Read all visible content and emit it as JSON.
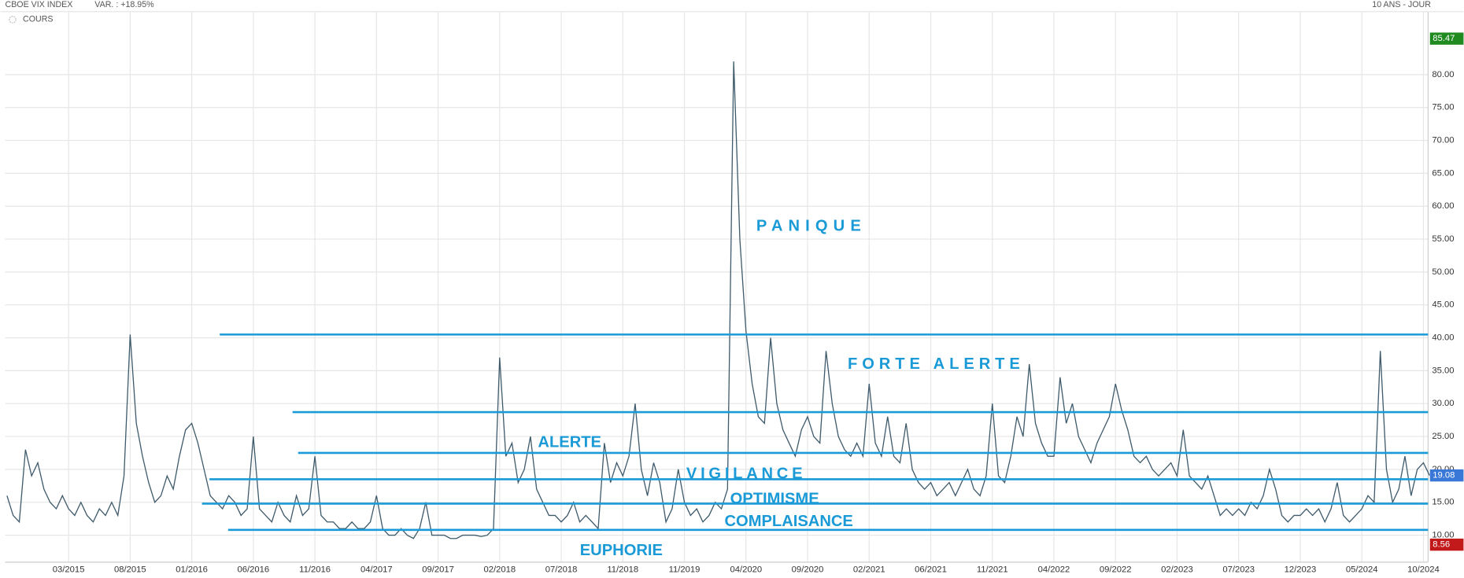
{
  "chart_data": {
    "type": "line",
    "header": {
      "title": "CBOE VIX INDEX",
      "variation": "VAR. : +18.95%",
      "period": "10 ANS - JOUR"
    },
    "legend_label": "COURS",
    "categories": [
      null,
      null,
      null,
      null,
      null,
      null,
      null,
      null,
      null,
      null,
      "03/2015",
      null,
      null,
      null,
      null,
      null,
      null,
      null,
      null,
      null,
      "08/2015",
      null,
      null,
      null,
      null,
      null,
      null,
      null,
      null,
      null,
      "01/2016",
      null,
      null,
      null,
      null,
      null,
      null,
      null,
      null,
      null,
      "06/2016",
      null,
      null,
      null,
      null,
      null,
      null,
      null,
      null,
      null,
      "11/2016",
      null,
      null,
      null,
      null,
      null,
      null,
      null,
      null,
      null,
      "04/2017",
      null,
      null,
      null,
      null,
      null,
      null,
      null,
      null,
      null,
      "09/2017",
      null,
      null,
      null,
      null,
      null,
      null,
      null,
      null,
      null,
      "02/2018",
      null,
      null,
      null,
      null,
      null,
      null,
      null,
      null,
      null,
      "07/2018",
      null,
      null,
      null,
      null,
      null,
      null,
      null,
      null,
      null,
      "11/2018",
      null,
      null,
      null,
      null,
      null,
      null,
      null,
      null,
      null,
      "11/2019",
      null,
      null,
      null,
      null,
      null,
      null,
      null,
      null,
      null,
      "04/2020",
      null,
      null,
      null,
      null,
      null,
      null,
      null,
      null,
      null,
      "09/2020",
      null,
      null,
      null,
      null,
      null,
      null,
      null,
      null,
      null,
      "02/2021",
      null,
      null,
      null,
      null,
      null,
      null,
      null,
      null,
      null,
      "06/2021",
      null,
      null,
      null,
      null,
      null,
      null,
      null,
      null,
      null,
      "11/2021",
      null,
      null,
      null,
      null,
      null,
      null,
      null,
      null,
      null,
      "04/2022",
      null,
      null,
      null,
      null,
      null,
      null,
      null,
      null,
      null,
      "09/2022",
      null,
      null,
      null,
      null,
      null,
      null,
      null,
      null,
      null,
      "02/2023",
      null,
      null,
      null,
      null,
      null,
      null,
      null,
      null,
      null,
      "07/2023",
      null,
      null,
      null,
      null,
      null,
      null,
      null,
      null,
      null,
      "12/2023",
      null,
      null,
      null,
      null,
      null,
      null,
      null,
      null,
      null,
      "05/2024",
      null,
      null,
      null,
      null,
      null,
      null,
      null,
      null,
      null,
      "10/2024",
      null
    ],
    "series": [
      {
        "name": "CBOE VIX INDEX",
        "color": "#3e5a6b",
        "values": [
          16,
          13,
          12,
          23,
          19,
          21,
          17,
          15,
          14,
          16,
          14,
          13,
          15,
          13,
          12,
          14,
          13,
          15,
          13,
          19,
          40.5,
          27,
          22,
          18,
          15,
          16,
          19,
          17,
          22,
          26,
          27,
          24,
          20,
          16,
          15,
          14,
          16,
          15,
          13,
          14,
          25,
          14,
          13,
          12,
          15,
          13,
          12,
          16,
          13,
          14,
          22,
          13,
          12,
          12,
          11,
          11,
          12,
          11,
          11,
          12,
          16,
          11,
          10,
          10,
          11,
          10,
          9.5,
          11,
          15,
          10,
          10,
          10,
          9.5,
          9.5,
          10,
          10,
          10,
          9.8,
          10,
          11,
          37,
          22,
          24,
          18,
          20,
          25,
          17,
          15,
          13,
          13,
          12,
          13,
          15,
          12,
          13,
          12,
          11,
          24,
          18,
          21,
          19,
          22,
          30,
          20,
          16,
          21,
          18,
          12,
          14,
          20,
          15,
          13,
          14,
          12,
          13,
          15,
          14,
          17,
          82,
          55,
          41,
          33,
          28,
          27,
          40,
          30,
          26,
          24,
          22,
          26,
          28,
          25,
          24,
          38,
          30,
          25,
          23,
          22,
          24,
          22,
          33,
          24,
          22,
          28,
          22,
          21,
          27,
          20,
          18,
          17,
          18,
          16,
          17,
          18,
          16,
          18,
          20,
          17,
          16,
          19,
          30,
          19,
          18,
          22,
          28,
          25,
          36,
          27,
          24,
          22,
          22,
          34,
          27,
          30,
          25,
          23,
          21,
          24,
          26,
          28,
          33,
          29,
          26,
          22,
          21,
          22,
          20,
          19,
          20,
          21,
          19,
          26,
          19,
          18,
          17,
          19,
          16,
          13,
          14,
          13,
          14,
          13,
          15,
          14,
          16,
          20,
          17,
          13,
          12,
          13,
          13,
          14,
          13,
          14,
          12,
          14,
          18,
          13,
          12,
          13,
          14,
          16,
          15,
          38,
          20,
          15,
          17,
          22,
          16,
          20,
          21,
          19.08
        ]
      }
    ],
    "ylim": [
      5.9,
      89.5
    ],
    "yticks": [
      {
        "value": 10,
        "label": "10.00"
      },
      {
        "value": 15,
        "label": "15.00"
      },
      {
        "value": 20,
        "label": "20.00"
      },
      {
        "value": 25,
        "label": "25.00"
      },
      {
        "value": 30,
        "label": "30.00"
      },
      {
        "value": 35,
        "label": "35.00"
      },
      {
        "value": 40,
        "label": "40.00"
      },
      {
        "value": 45,
        "label": "45.00"
      },
      {
        "value": 50,
        "label": "50.00"
      },
      {
        "value": 55,
        "label": "55.00"
      },
      {
        "value": 60,
        "label": "60.00"
      },
      {
        "value": 65,
        "label": "65.00"
      },
      {
        "value": 70,
        "label": "70.00"
      },
      {
        "value": 75,
        "label": "75.00"
      },
      {
        "value": 80,
        "label": "80.00"
      }
    ],
    "grid": true,
    "badges": [
      {
        "value": 85.47,
        "color": "#1f8a1f"
      },
      {
        "value": 19.08,
        "color": "#3a78d8"
      },
      {
        "value": 8.56,
        "color": "#c21a1a"
      }
    ],
    "zone_levels": [
      40.5,
      28.7,
      22.5,
      18.5,
      14.8,
      10.8
    ],
    "zone_color": "#1a9ad6",
    "zone_labels": [
      "PANIQUE",
      "FORTE ALERTE",
      "ALERTE",
      "VIGILANCE",
      "OPTIMISME",
      "COMPLAISANCE",
      "EUPHORIE"
    ]
  }
}
